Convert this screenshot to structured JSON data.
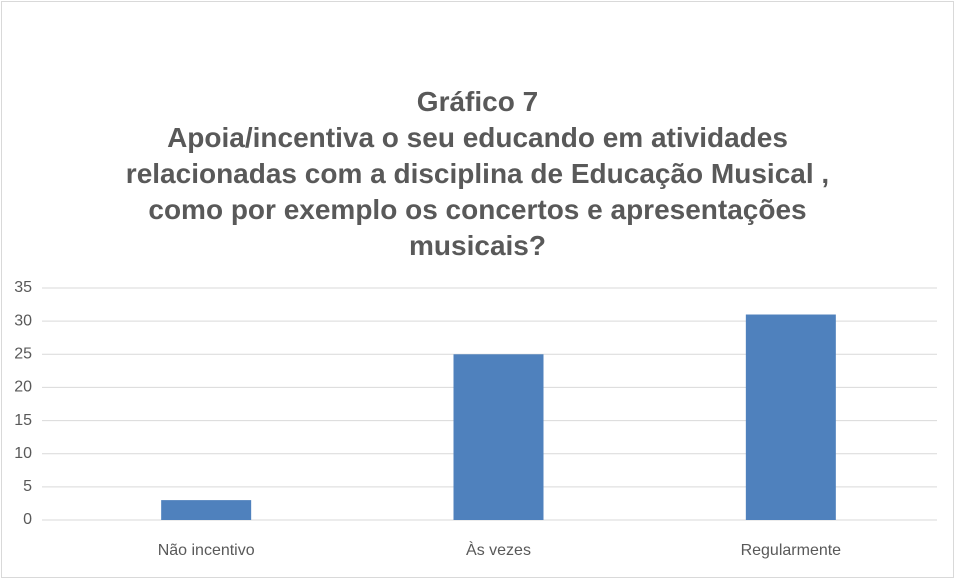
{
  "chart_data": {
    "type": "bar",
    "title": "Gráfico 7",
    "subtitle": "Apoia/incentiva o seu educando em atividades relacionadas com a disciplina de Educação Musical , como por exemplo os concertos e apresentações musicais?",
    "categories": [
      "Não incentivo",
      "Às vezes",
      "Regularmente"
    ],
    "values": [
      3,
      25,
      31
    ],
    "color": "#4f81bd",
    "ylim": [
      0,
      35
    ],
    "yticks": [
      0,
      5,
      10,
      15,
      20,
      25,
      30,
      35
    ],
    "grid": true
  }
}
